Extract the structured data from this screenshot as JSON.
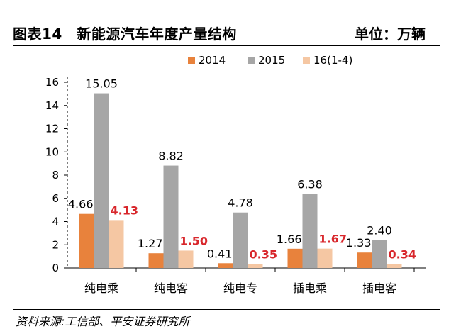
{
  "header": {
    "title": "图表14　新能源汽车年度产量结构",
    "unit": "单位：万辆"
  },
  "source": "资料来源:工信部、平安证券研究所",
  "colors": {
    "s2014": "#e8823c",
    "s2015": "#a6a6a6",
    "s2016": "#f5c7a3",
    "highlight": "#d8262b"
  },
  "chart_data": {
    "type": "bar",
    "categories": [
      "纯电乘",
      "纯电客",
      "纯电专",
      "插电乘",
      "插电客"
    ],
    "series": [
      {
        "name": "2014",
        "values": [
          4.66,
          1.27,
          0.41,
          1.66,
          1.33
        ]
      },
      {
        "name": "2015",
        "values": [
          15.05,
          8.82,
          4.78,
          6.38,
          2.4
        ]
      },
      {
        "name": "16(1-4)",
        "values": [
          4.13,
          1.5,
          0.35,
          1.67,
          0.34
        ]
      }
    ],
    "data_labels": [
      [
        "4.66",
        "1.27",
        "0.41",
        "1.66",
        "1.33"
      ],
      [
        "15.05",
        "8.82",
        "4.78",
        "6.38",
        "2.40"
      ],
      [
        "4.13",
        "1.50",
        "0.35",
        "1.67",
        "0.34"
      ]
    ],
    "highlight_series": 2,
    "yticks": [
      "0",
      "2",
      "4",
      "6",
      "8",
      "10",
      "12",
      "14",
      "16"
    ],
    "ylim": [
      0,
      16
    ],
    "legend_position": "top"
  }
}
